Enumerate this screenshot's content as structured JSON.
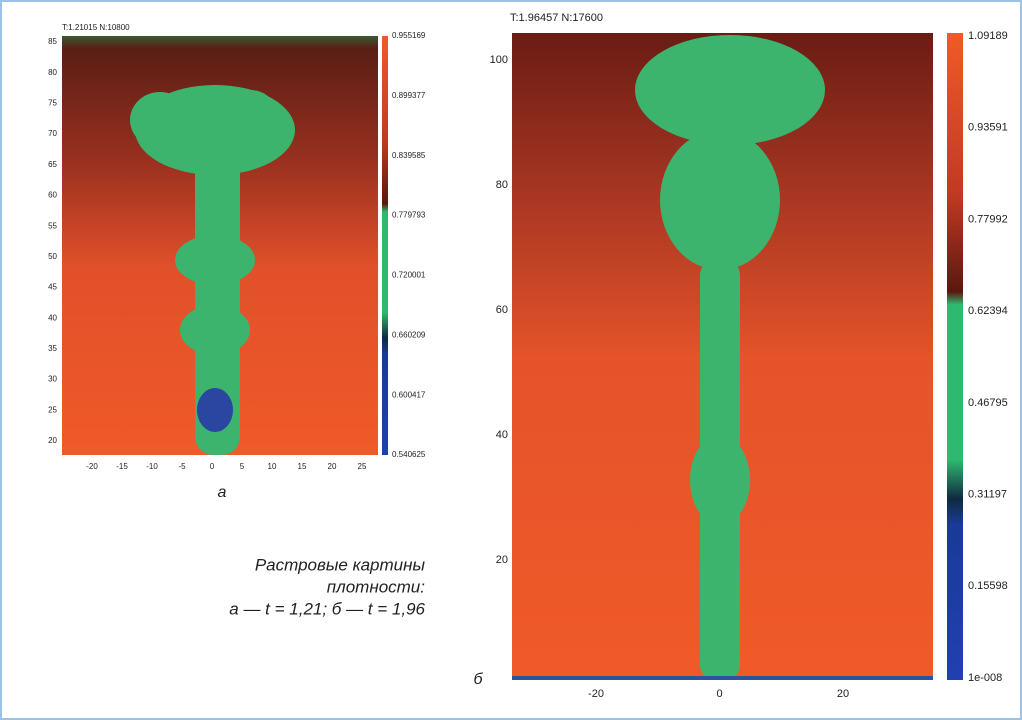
{
  "panels": [
    {
      "header": "T:1.21015 N:10800",
      "yticks": [
        "85",
        "80",
        "75",
        "70",
        "65",
        "60",
        "55",
        "50",
        "45",
        "40",
        "35",
        "30",
        "25",
        "20"
      ],
      "xticks": [
        "-20",
        "-15",
        "-10",
        "-5",
        "0",
        "5",
        "10",
        "15",
        "20",
        "25"
      ],
      "colorbar": [
        "0.955169",
        "0.899377",
        "0.839585",
        "0.779793",
        "0.720001",
        "0.660209",
        "0.600417",
        "0.540625"
      ],
      "label": "а"
    },
    {
      "header": "T:1.96457 N:17600",
      "yticks": [
        "100",
        "80",
        "60",
        "40",
        "20"
      ],
      "xticks": [
        "-20",
        "0",
        "20"
      ],
      "colorbar": [
        "1.09189",
        "0.93591",
        "0.77992",
        "0.62394",
        "0.46795",
        "0.31197",
        "0.15598",
        "1e-008"
      ],
      "label": "б"
    }
  ],
  "caption": [
    "Растровые картины",
    "плотности:",
    "а — t = 1,21; б — t = 1,96"
  ]
}
